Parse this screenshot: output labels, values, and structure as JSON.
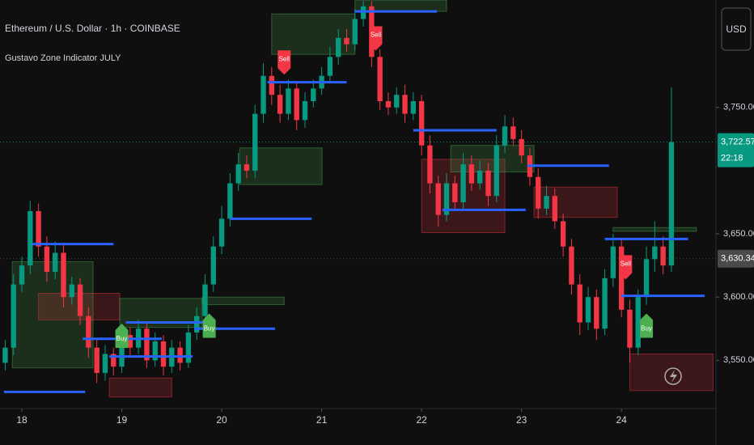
{
  "chart_data": {
    "type": "candlestick",
    "title": "Ethereum / U.S. Dollar · 1h · COINBASE",
    "subtitle": "Gustavo Zone Indicator JULY",
    "currency": "USD",
    "up_color": "#089981",
    "down_color": "#f23645",
    "x": [
      -4,
      -2,
      0,
      2,
      4,
      6,
      8,
      10,
      12,
      14,
      16,
      18,
      20,
      22,
      24,
      26,
      28,
      30,
      32,
      34,
      36,
      38,
      40,
      42,
      44,
      46,
      48,
      50,
      52,
      54,
      56,
      58,
      60,
      62,
      64,
      66,
      68,
      70,
      72,
      74,
      76,
      78,
      80,
      82,
      84,
      86,
      88,
      90,
      92,
      94,
      96,
      98,
      100,
      102,
      104,
      106,
      108,
      110,
      112,
      114,
      116,
      118,
      120,
      122,
      124,
      126,
      128,
      130,
      132,
      134,
      136,
      138,
      140,
      142,
      144,
      146,
      148,
      150,
      152,
      154,
      156
    ],
    "open": [
      3548,
      3560,
      3610,
      3625,
      3668,
      3640,
      3620,
      3635,
      3600,
      3610,
      3585,
      3560,
      3540,
      3555,
      3545,
      3570,
      3560,
      3575,
      3550,
      3565,
      3545,
      3560,
      3548,
      3572,
      3585,
      3610,
      3640,
      3662,
      3690,
      3705,
      3700,
      3745,
      3775,
      3760,
      3745,
      3765,
      3740,
      3755,
      3765,
      3775,
      3790,
      3805,
      3800,
      3820,
      3830,
      3790,
      3755,
      3750,
      3760,
      3745,
      3755,
      3720,
      3690,
      3665,
      3690,
      3675,
      3705,
      3690,
      3700,
      3680,
      3720,
      3735,
      3725,
      3712,
      3695,
      3670,
      3680,
      3660,
      3640,
      3610,
      3580,
      3600,
      3575,
      3615,
      3640,
      3590,
      3560,
      3600,
      3630,
      3640,
      3625
    ],
    "high": [
      3566,
      3618,
      3632,
      3676,
      3674,
      3648,
      3644,
      3642,
      3616,
      3615,
      3592,
      3566,
      3562,
      3560,
      3578,
      3576,
      3582,
      3580,
      3572,
      3570,
      3566,
      3565,
      3578,
      3592,
      3618,
      3648,
      3672,
      3698,
      3714,
      3712,
      3752,
      3785,
      3782,
      3768,
      3772,
      3770,
      3762,
      3772,
      3782,
      3798,
      3812,
      3812,
      3828,
      3834,
      3834,
      3796,
      3762,
      3766,
      3768,
      3762,
      3760,
      3728,
      3696,
      3698,
      3696,
      3714,
      3712,
      3708,
      3706,
      3728,
      3744,
      3742,
      3732,
      3718,
      3702,
      3688,
      3686,
      3666,
      3646,
      3618,
      3608,
      3606,
      3622,
      3650,
      3646,
      3598,
      3606,
      3640,
      3660,
      3648,
      3766
    ],
    "low": [
      3542,
      3554,
      3604,
      3618,
      3632,
      3612,
      3614,
      3592,
      3594,
      3578,
      3552,
      3532,
      3534,
      3538,
      3540,
      3554,
      3555,
      3544,
      3545,
      3538,
      3540,
      3542,
      3544,
      3566,
      3580,
      3604,
      3634,
      3656,
      3684,
      3694,
      3694,
      3738,
      3752,
      3738,
      3740,
      3732,
      3734,
      3750,
      3760,
      3770,
      3784,
      3794,
      3795,
      3814,
      3782,
      3748,
      3744,
      3745,
      3738,
      3740,
      3712,
      3682,
      3656,
      3660,
      3668,
      3670,
      3684,
      3685,
      3672,
      3675,
      3714,
      3720,
      3706,
      3688,
      3662,
      3665,
      3654,
      3632,
      3602,
      3570,
      3574,
      3566,
      3570,
      3608,
      3584,
      3548,
      3554,
      3594,
      3620,
      3618,
      3620
    ],
    "close": [
      3560,
      3610,
      3625,
      3668,
      3640,
      3620,
      3635,
      3600,
      3610,
      3585,
      3560,
      3540,
      3555,
      3545,
      3570,
      3560,
      3575,
      3550,
      3565,
      3545,
      3560,
      3548,
      3572,
      3585,
      3610,
      3640,
      3662,
      3690,
      3705,
      3700,
      3745,
      3775,
      3760,
      3745,
      3765,
      3740,
      3755,
      3765,
      3775,
      3790,
      3805,
      3800,
      3820,
      3830,
      3790,
      3755,
      3750,
      3760,
      3745,
      3755,
      3720,
      3690,
      3665,
      3690,
      3675,
      3705,
      3690,
      3700,
      3680,
      3720,
      3735,
      3725,
      3712,
      3695,
      3670,
      3680,
      3660,
      3640,
      3610,
      3580,
      3600,
      3575,
      3615,
      3640,
      3590,
      3560,
      3600,
      3630,
      3640,
      3625,
      3722.57
    ],
    "xlim": [
      -5.25,
      166.7
    ],
    "xticks": [
      {
        "value": 0,
        "label": "18"
      },
      {
        "value": 24,
        "label": "19"
      },
      {
        "value": 48,
        "label": "20"
      },
      {
        "value": 72,
        "label": "21"
      },
      {
        "value": 96,
        "label": "22"
      },
      {
        "value": 120,
        "label": "23"
      },
      {
        "value": 144,
        "label": "24"
      }
    ],
    "ylim": [
      3515,
      3835
    ],
    "yticks": [
      {
        "value": 3750,
        "label": "3,750.00"
      },
      {
        "value": 3650,
        "label": "3,650.00"
      },
      {
        "value": 3600,
        "label": "3,600.00"
      },
      {
        "value": 3550,
        "label": "3,550.00"
      }
    ],
    "zones": [
      {
        "x": [
          -2.3,
          17.1
        ],
        "y": [
          3544,
          3628
        ],
        "color": "#4caf50"
      },
      {
        "x": [
          4,
          23.5
        ],
        "y": [
          3582,
          3603
        ],
        "color": "#f23645"
      },
      {
        "x": [
          21,
          36
        ],
        "y": [
          3521,
          3536
        ],
        "color": "#f23645"
      },
      {
        "x": [
          23.5,
          43.3
        ],
        "y": [
          3576,
          3599
        ],
        "color": "#4caf50"
      },
      {
        "x": [
          43.3,
          63
        ],
        "y": [
          3594,
          3600
        ],
        "color": "#4caf50"
      },
      {
        "x": [
          52.3,
          72.1
        ],
        "y": [
          3689,
          3718
        ],
        "color": "#4caf50"
      },
      {
        "x": [
          60,
          80
        ],
        "y": [
          3792,
          3824
        ],
        "color": "#4caf50"
      },
      {
        "x": [
          80,
          102
        ],
        "y": [
          3826,
          3835
        ],
        "color": "#4caf50"
      },
      {
        "x": [
          96,
          116
        ],
        "y": [
          3651,
          3709
        ],
        "color": "#f23645"
      },
      {
        "x": [
          103,
          123
        ],
        "y": [
          3699,
          3720
        ],
        "color": "#4caf50"
      },
      {
        "x": [
          123,
          143
        ],
        "y": [
          3663,
          3687
        ],
        "color": "#f23645"
      },
      {
        "x": [
          142,
          162
        ],
        "y": [
          3652,
          3655
        ],
        "color": "#4caf50"
      },
      {
        "x": [
          146,
          166
        ],
        "y": [
          3526,
          3555
        ],
        "color": "#f23645"
      }
    ],
    "levels": [
      {
        "x": [
          -4.3,
          15.2
        ],
        "value": 3525
      },
      {
        "x": [
          2.5,
          22
        ],
        "value": 3642
      },
      {
        "x": [
          14.6,
          33.6
        ],
        "value": 3567
      },
      {
        "x": [
          21,
          41
        ],
        "value": 3553
      },
      {
        "x": [
          25,
          44
        ],
        "value": 3580
      },
      {
        "x": [
          41.4,
          60.8
        ],
        "value": 3575
      },
      {
        "x": [
          50,
          69.6
        ],
        "value": 3662
      },
      {
        "x": [
          59,
          78
        ],
        "value": 3770
      },
      {
        "x": [
          80,
          99.7
        ],
        "value": 3826
      },
      {
        "x": [
          94,
          114
        ],
        "value": 3732
      },
      {
        "x": [
          101,
          121
        ],
        "value": 3669
      },
      {
        "x": [
          121.5,
          141
        ],
        "value": 3704
      },
      {
        "x": [
          140,
          160
        ],
        "value": 3646
      },
      {
        "x": [
          144,
          164
        ],
        "value": 3601
      }
    ],
    "level_color": "#2962ff",
    "signals": [
      {
        "label": "Sell",
        "x": 63,
        "value": 3776,
        "color": "#f23645"
      },
      {
        "label": "Sell",
        "x": 85,
        "value": 3795,
        "color": "#f23645"
      },
      {
        "label": "Sell",
        "x": 145,
        "value": 3614,
        "color": "#f23645"
      },
      {
        "label": "Buy",
        "x": 24,
        "value": 3579,
        "color": "#4caf50"
      },
      {
        "label": "Buy",
        "x": 45,
        "value": 3587,
        "color": "#4caf50"
      },
      {
        "label": "Buy",
        "x": 150,
        "value": 3587,
        "color": "#4caf50"
      }
    ],
    "price_labels": [
      {
        "value": 3722.57,
        "label": "3,722.57",
        "timer": "22:18",
        "color": "#089981"
      },
      {
        "value": 3630.34,
        "label": "3,630.34",
        "color": "#4a4a4a"
      }
    ]
  }
}
